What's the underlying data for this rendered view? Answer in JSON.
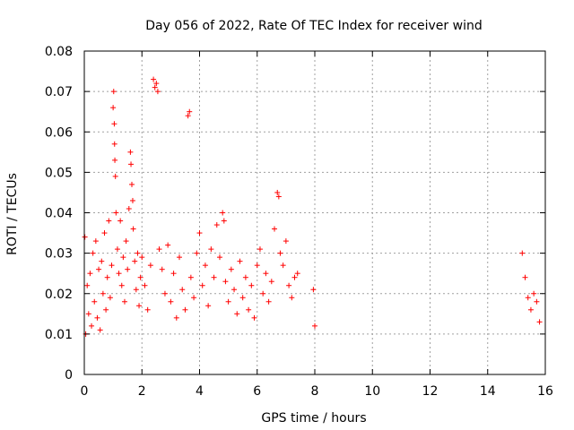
{
  "chart_data": {
    "type": "scatter",
    "title": "Day 056 of 2022, Rate Of TEC Index for receiver wind",
    "xlabel": "GPS time / hours",
    "ylabel": "ROTI / TECUs",
    "xlim": [
      0,
      16
    ],
    "ylim": [
      0,
      0.08
    ],
    "xticks": [
      "0",
      "2",
      "4",
      "6",
      "8",
      "10",
      "12",
      "14",
      "16"
    ],
    "yticks": [
      "0",
      "0.01",
      "0.02",
      "0.03",
      "0.04",
      "0.05",
      "0.06",
      "0.07",
      "0.08"
    ],
    "grid": true,
    "marker": "+",
    "color": "#ff0000",
    "series": [
      {
        "x": [
          0.02,
          0.05,
          0.1,
          0.15,
          0.2,
          0.25,
          0.3,
          0.35,
          0.4,
          0.45,
          0.5,
          0.55,
          0.6,
          0.65,
          0.7,
          0.75,
          0.8,
          0.85,
          0.9,
          0.95,
          1.0,
          1.02,
          1.04,
          1.05,
          1.06,
          1.08,
          1.1,
          1.15,
          1.2,
          1.25,
          1.3,
          1.35,
          1.4,
          1.45,
          1.5,
          1.55,
          1.6,
          1.62,
          1.65,
          1.68,
          1.7,
          1.75,
          1.8,
          1.85,
          1.9,
          1.95,
          2.0,
          2.1,
          2.2,
          2.3,
          2.4,
          2.45,
          2.5,
          2.55,
          2.6,
          2.7,
          2.8,
          2.9,
          3.0,
          3.1,
          3.2,
          3.3,
          3.4,
          3.5,
          3.6,
          3.65,
          3.7,
          3.8,
          3.9,
          4.0,
          4.1,
          4.2,
          4.3,
          4.4,
          4.5,
          4.6,
          4.7,
          4.8,
          4.85,
          4.9,
          5.0,
          5.1,
          5.2,
          5.3,
          5.4,
          5.5,
          5.6,
          5.7,
          5.8,
          5.9,
          6.0,
          6.1,
          6.2,
          6.3,
          6.4,
          6.5,
          6.6,
          6.7,
          6.75,
          6.8,
          6.9,
          7.0,
          7.1,
          7.2,
          7.3,
          7.4,
          7.95,
          8.0,
          15.2,
          15.3,
          15.4,
          15.5,
          15.6,
          15.7,
          15.8
        ],
        "y": [
          0.034,
          0.01,
          0.022,
          0.015,
          0.025,
          0.012,
          0.03,
          0.018,
          0.033,
          0.014,
          0.026,
          0.011,
          0.028,
          0.02,
          0.035,
          0.016,
          0.024,
          0.038,
          0.019,
          0.027,
          0.066,
          0.07,
          0.062,
          0.057,
          0.053,
          0.049,
          0.04,
          0.031,
          0.025,
          0.038,
          0.022,
          0.029,
          0.018,
          0.033,
          0.026,
          0.041,
          0.055,
          0.052,
          0.047,
          0.043,
          0.036,
          0.028,
          0.021,
          0.03,
          0.017,
          0.024,
          0.029,
          0.022,
          0.016,
          0.027,
          0.073,
          0.071,
          0.072,
          0.07,
          0.031,
          0.026,
          0.02,
          0.032,
          0.018,
          0.025,
          0.014,
          0.029,
          0.021,
          0.016,
          0.064,
          0.065,
          0.024,
          0.019,
          0.03,
          0.035,
          0.022,
          0.027,
          0.017,
          0.031,
          0.024,
          0.037,
          0.029,
          0.04,
          0.038,
          0.023,
          0.018,
          0.026,
          0.021,
          0.015,
          0.028,
          0.019,
          0.024,
          0.016,
          0.022,
          0.014,
          0.027,
          0.031,
          0.02,
          0.025,
          0.018,
          0.023,
          0.036,
          0.045,
          0.044,
          0.03,
          0.027,
          0.033,
          0.022,
          0.019,
          0.024,
          0.025,
          0.021,
          0.012,
          0.03,
          0.024,
          0.019,
          0.016,
          0.02,
          0.018,
          0.013
        ]
      }
    ]
  }
}
